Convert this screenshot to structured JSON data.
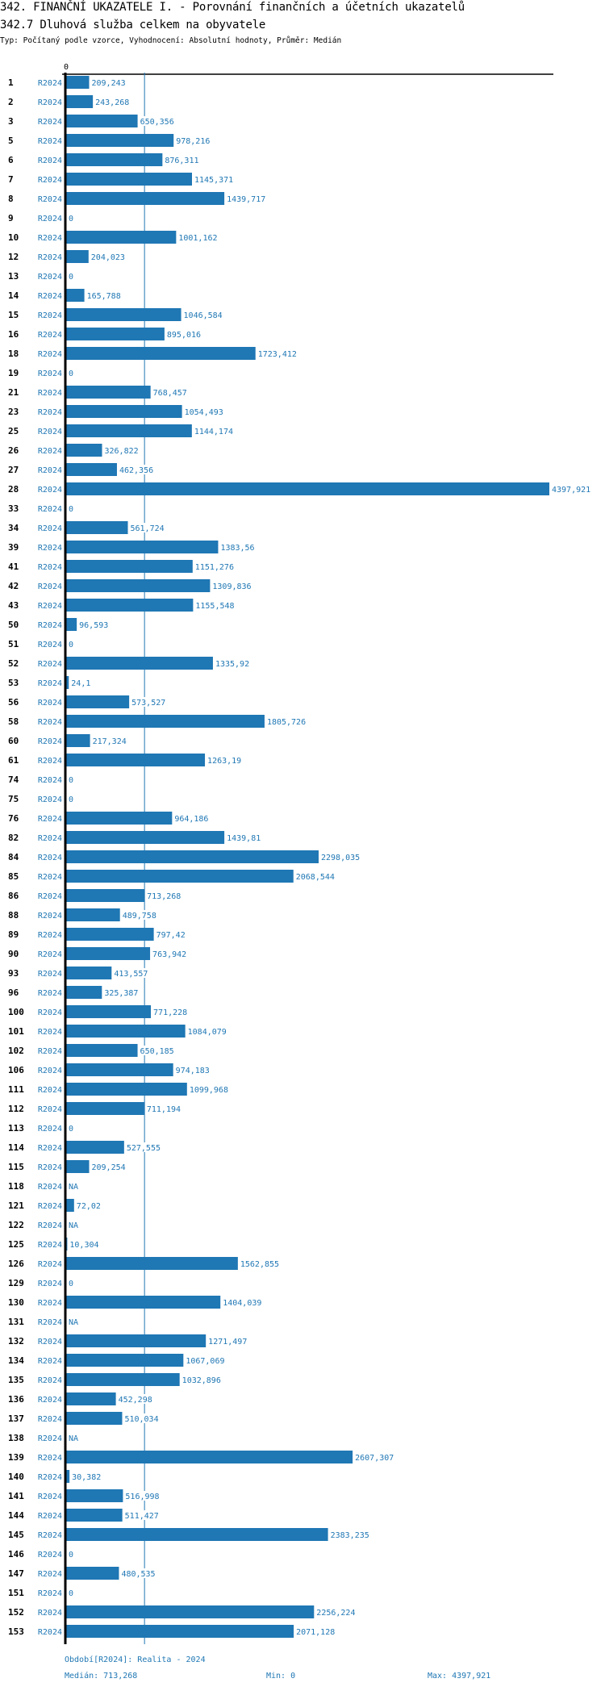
{
  "header": {
    "title": "342. FINANČNÍ UKAZATELE I. - Porovnání finančních a účetních ukazatelů",
    "subtitle": "342.7 Dluhová služba celkem na obyvatele",
    "meta": "Typ: Počítaný podle vzorce, Vyhodnocení: Absolutní hodnoty, Průměr: Medián"
  },
  "colors": {
    "bar": "#1f77b4",
    "label": "#1f77b4",
    "axis": "#000000",
    "median_line": "#1f77b4"
  },
  "chart_data": {
    "type": "bar",
    "orientation": "horizontal",
    "x_axis_zero_label": "0",
    "xlim": [
      0,
      4397.921
    ],
    "median": 713.268,
    "series_label": "R2024",
    "rows": [
      {
        "id": "1",
        "period": "R2024",
        "value": 209.243,
        "label": "209,243"
      },
      {
        "id": "2",
        "period": "R2024",
        "value": 243.268,
        "label": "243,268"
      },
      {
        "id": "3",
        "period": "R2024",
        "value": 650.356,
        "label": "650,356"
      },
      {
        "id": "5",
        "period": "R2024",
        "value": 978.216,
        "label": "978,216"
      },
      {
        "id": "6",
        "period": "R2024",
        "value": 876.311,
        "label": "876,311"
      },
      {
        "id": "7",
        "period": "R2024",
        "value": 1145.371,
        "label": "1145,371"
      },
      {
        "id": "8",
        "period": "R2024",
        "value": 1439.717,
        "label": "1439,717"
      },
      {
        "id": "9",
        "period": "R2024",
        "value": 0,
        "label": "0"
      },
      {
        "id": "10",
        "period": "R2024",
        "value": 1001.162,
        "label": "1001,162"
      },
      {
        "id": "12",
        "period": "R2024",
        "value": 204.023,
        "label": "204,023"
      },
      {
        "id": "13",
        "period": "R2024",
        "value": 0,
        "label": "0"
      },
      {
        "id": "14",
        "period": "R2024",
        "value": 165.788,
        "label": "165,788"
      },
      {
        "id": "15",
        "period": "R2024",
        "value": 1046.584,
        "label": "1046,584"
      },
      {
        "id": "16",
        "period": "R2024",
        "value": 895.016,
        "label": "895,016"
      },
      {
        "id": "18",
        "period": "R2024",
        "value": 1723.412,
        "label": "1723,412"
      },
      {
        "id": "19",
        "period": "R2024",
        "value": 0,
        "label": "0"
      },
      {
        "id": "21",
        "period": "R2024",
        "value": 768.457,
        "label": "768,457"
      },
      {
        "id": "23",
        "period": "R2024",
        "value": 1054.493,
        "label": "1054,493"
      },
      {
        "id": "25",
        "period": "R2024",
        "value": 1144.174,
        "label": "1144,174"
      },
      {
        "id": "26",
        "period": "R2024",
        "value": 326.822,
        "label": "326,822"
      },
      {
        "id": "27",
        "period": "R2024",
        "value": 462.356,
        "label": "462,356"
      },
      {
        "id": "28",
        "period": "R2024",
        "value": 4397.921,
        "label": "4397,921"
      },
      {
        "id": "33",
        "period": "R2024",
        "value": 0,
        "label": "0"
      },
      {
        "id": "34",
        "period": "R2024",
        "value": 561.724,
        "label": "561,724"
      },
      {
        "id": "39",
        "period": "R2024",
        "value": 1383.56,
        "label": "1383,56"
      },
      {
        "id": "41",
        "period": "R2024",
        "value": 1151.276,
        "label": "1151,276"
      },
      {
        "id": "42",
        "period": "R2024",
        "value": 1309.836,
        "label": "1309,836"
      },
      {
        "id": "43",
        "period": "R2024",
        "value": 1155.548,
        "label": "1155,548"
      },
      {
        "id": "50",
        "period": "R2024",
        "value": 96.593,
        "label": "96,593"
      },
      {
        "id": "51",
        "period": "R2024",
        "value": 0,
        "label": "0"
      },
      {
        "id": "52",
        "period": "R2024",
        "value": 1335.92,
        "label": "1335,92"
      },
      {
        "id": "53",
        "period": "R2024",
        "value": 24.1,
        "label": "24,1"
      },
      {
        "id": "56",
        "period": "R2024",
        "value": 573.527,
        "label": "573,527"
      },
      {
        "id": "58",
        "period": "R2024",
        "value": 1805.726,
        "label": "1805,726"
      },
      {
        "id": "60",
        "period": "R2024",
        "value": 217.324,
        "label": "217,324"
      },
      {
        "id": "61",
        "period": "R2024",
        "value": 1263.19,
        "label": "1263,19"
      },
      {
        "id": "74",
        "period": "R2024",
        "value": 0,
        "label": "0"
      },
      {
        "id": "75",
        "period": "R2024",
        "value": 0,
        "label": "0"
      },
      {
        "id": "76",
        "period": "R2024",
        "value": 964.186,
        "label": "964,186"
      },
      {
        "id": "82",
        "period": "R2024",
        "value": 1439.81,
        "label": "1439,81"
      },
      {
        "id": "84",
        "period": "R2024",
        "value": 2298.035,
        "label": "2298,035"
      },
      {
        "id": "85",
        "period": "R2024",
        "value": 2068.544,
        "label": "2068,544"
      },
      {
        "id": "86",
        "period": "R2024",
        "value": 713.268,
        "label": "713,268"
      },
      {
        "id": "88",
        "period": "R2024",
        "value": 489.758,
        "label": "489,758"
      },
      {
        "id": "89",
        "period": "R2024",
        "value": 797.42,
        "label": "797,42"
      },
      {
        "id": "90",
        "period": "R2024",
        "value": 763.942,
        "label": "763,942"
      },
      {
        "id": "93",
        "period": "R2024",
        "value": 413.557,
        "label": "413,557"
      },
      {
        "id": "96",
        "period": "R2024",
        "value": 325.387,
        "label": "325,387"
      },
      {
        "id": "100",
        "period": "R2024",
        "value": 771.228,
        "label": "771,228"
      },
      {
        "id": "101",
        "period": "R2024",
        "value": 1084.079,
        "label": "1084,079"
      },
      {
        "id": "102",
        "period": "R2024",
        "value": 650.185,
        "label": "650,185"
      },
      {
        "id": "106",
        "period": "R2024",
        "value": 974.183,
        "label": "974,183"
      },
      {
        "id": "111",
        "period": "R2024",
        "value": 1099.968,
        "label": "1099,968"
      },
      {
        "id": "112",
        "period": "R2024",
        "value": 711.194,
        "label": "711,194"
      },
      {
        "id": "113",
        "period": "R2024",
        "value": 0,
        "label": "0"
      },
      {
        "id": "114",
        "period": "R2024",
        "value": 527.555,
        "label": "527,555"
      },
      {
        "id": "115",
        "period": "R2024",
        "value": 209.254,
        "label": "209,254"
      },
      {
        "id": "118",
        "period": "R2024",
        "value": null,
        "label": "NA"
      },
      {
        "id": "121",
        "period": "R2024",
        "value": 72.02,
        "label": "72,02"
      },
      {
        "id": "122",
        "period": "R2024",
        "value": null,
        "label": "NA"
      },
      {
        "id": "125",
        "period": "R2024",
        "value": 10.304,
        "label": "10,304"
      },
      {
        "id": "126",
        "period": "R2024",
        "value": 1562.855,
        "label": "1562,855"
      },
      {
        "id": "129",
        "period": "R2024",
        "value": 0,
        "label": "0"
      },
      {
        "id": "130",
        "period": "R2024",
        "value": 1404.039,
        "label": "1404,039"
      },
      {
        "id": "131",
        "period": "R2024",
        "value": null,
        "label": "NA"
      },
      {
        "id": "132",
        "period": "R2024",
        "value": 1271.497,
        "label": "1271,497"
      },
      {
        "id": "134",
        "period": "R2024",
        "value": 1067.069,
        "label": "1067,069"
      },
      {
        "id": "135",
        "period": "R2024",
        "value": 1032.896,
        "label": "1032,896"
      },
      {
        "id": "136",
        "period": "R2024",
        "value": 452.298,
        "label": "452,298"
      },
      {
        "id": "137",
        "period": "R2024",
        "value": 510.034,
        "label": "510,034"
      },
      {
        "id": "138",
        "period": "R2024",
        "value": null,
        "label": "NA"
      },
      {
        "id": "139",
        "period": "R2024",
        "value": 2607.307,
        "label": "2607,307"
      },
      {
        "id": "140",
        "period": "R2024",
        "value": 30.382,
        "label": "30,382"
      },
      {
        "id": "141",
        "period": "R2024",
        "value": 516.998,
        "label": "516,998"
      },
      {
        "id": "144",
        "period": "R2024",
        "value": 511.427,
        "label": "511,427"
      },
      {
        "id": "145",
        "period": "R2024",
        "value": 2383.235,
        "label": "2383,235"
      },
      {
        "id": "146",
        "period": "R2024",
        "value": 0,
        "label": "0"
      },
      {
        "id": "147",
        "period": "R2024",
        "value": 480.535,
        "label": "480,535"
      },
      {
        "id": "151",
        "period": "R2024",
        "value": 0,
        "label": "0"
      },
      {
        "id": "152",
        "period": "R2024",
        "value": 2256.224,
        "label": "2256,224"
      },
      {
        "id": "153",
        "period": "R2024",
        "value": 2071.128,
        "label": "2071,128"
      }
    ]
  },
  "footer": {
    "period": "Období[R2024]: Realita - 2024",
    "median": "Medián: 713,268",
    "min": "Min: 0",
    "max": "Max: 4397,921"
  }
}
